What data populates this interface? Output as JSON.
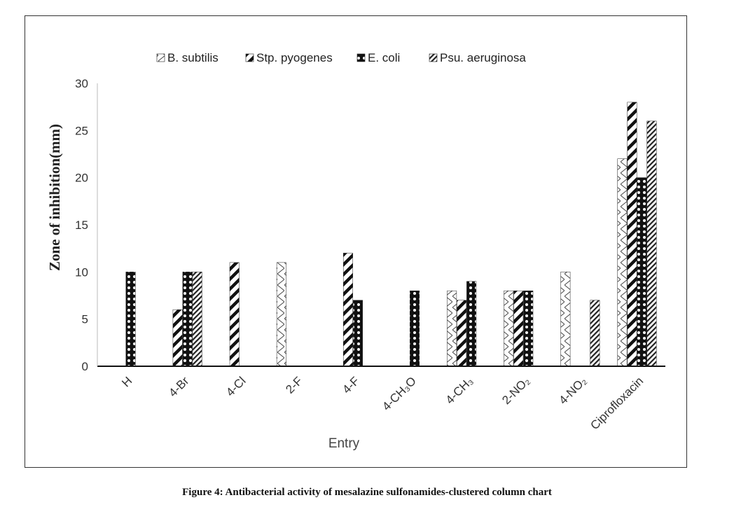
{
  "chart_data": {
    "type": "bar",
    "categories": [
      "H",
      "4-Br",
      "4-Cl",
      "2-F",
      "4-F",
      "4-CH₃O",
      "4-CH₃",
      "2-NO₂",
      "4-NO₂",
      "Ciprofloxacin"
    ],
    "series": [
      {
        "name": "B. subtilis",
        "pattern": "zigzag",
        "values": [
          0,
          0,
          0,
          11,
          0,
          0,
          8,
          8,
          10,
          22
        ]
      },
      {
        "name": "Stp. pyogenes",
        "pattern": "bold-diagonal",
        "values": [
          0,
          6,
          11,
          0,
          12,
          0,
          7,
          8,
          0,
          28
        ]
      },
      {
        "name": "E. coli",
        "pattern": "dots",
        "values": [
          10,
          10,
          0,
          0,
          7,
          8,
          9,
          8,
          0,
          20
        ]
      },
      {
        "name": "Psu. aeruginosa",
        "pattern": "fine-diagonal",
        "values": [
          0,
          10,
          0,
          0,
          0,
          0,
          0,
          0,
          7,
          26
        ]
      }
    ],
    "ylabel": "Zone of inhibition(mm)",
    "xlabel": "Entry",
    "ylim": [
      0,
      30
    ],
    "yticks": [
      0,
      5,
      10,
      15,
      20,
      25,
      30
    ],
    "grid": false,
    "legend_position": "top"
  },
  "caption": "Figure 4: Antibacterial activity of mesalazine sulfonamides-clustered column chart"
}
